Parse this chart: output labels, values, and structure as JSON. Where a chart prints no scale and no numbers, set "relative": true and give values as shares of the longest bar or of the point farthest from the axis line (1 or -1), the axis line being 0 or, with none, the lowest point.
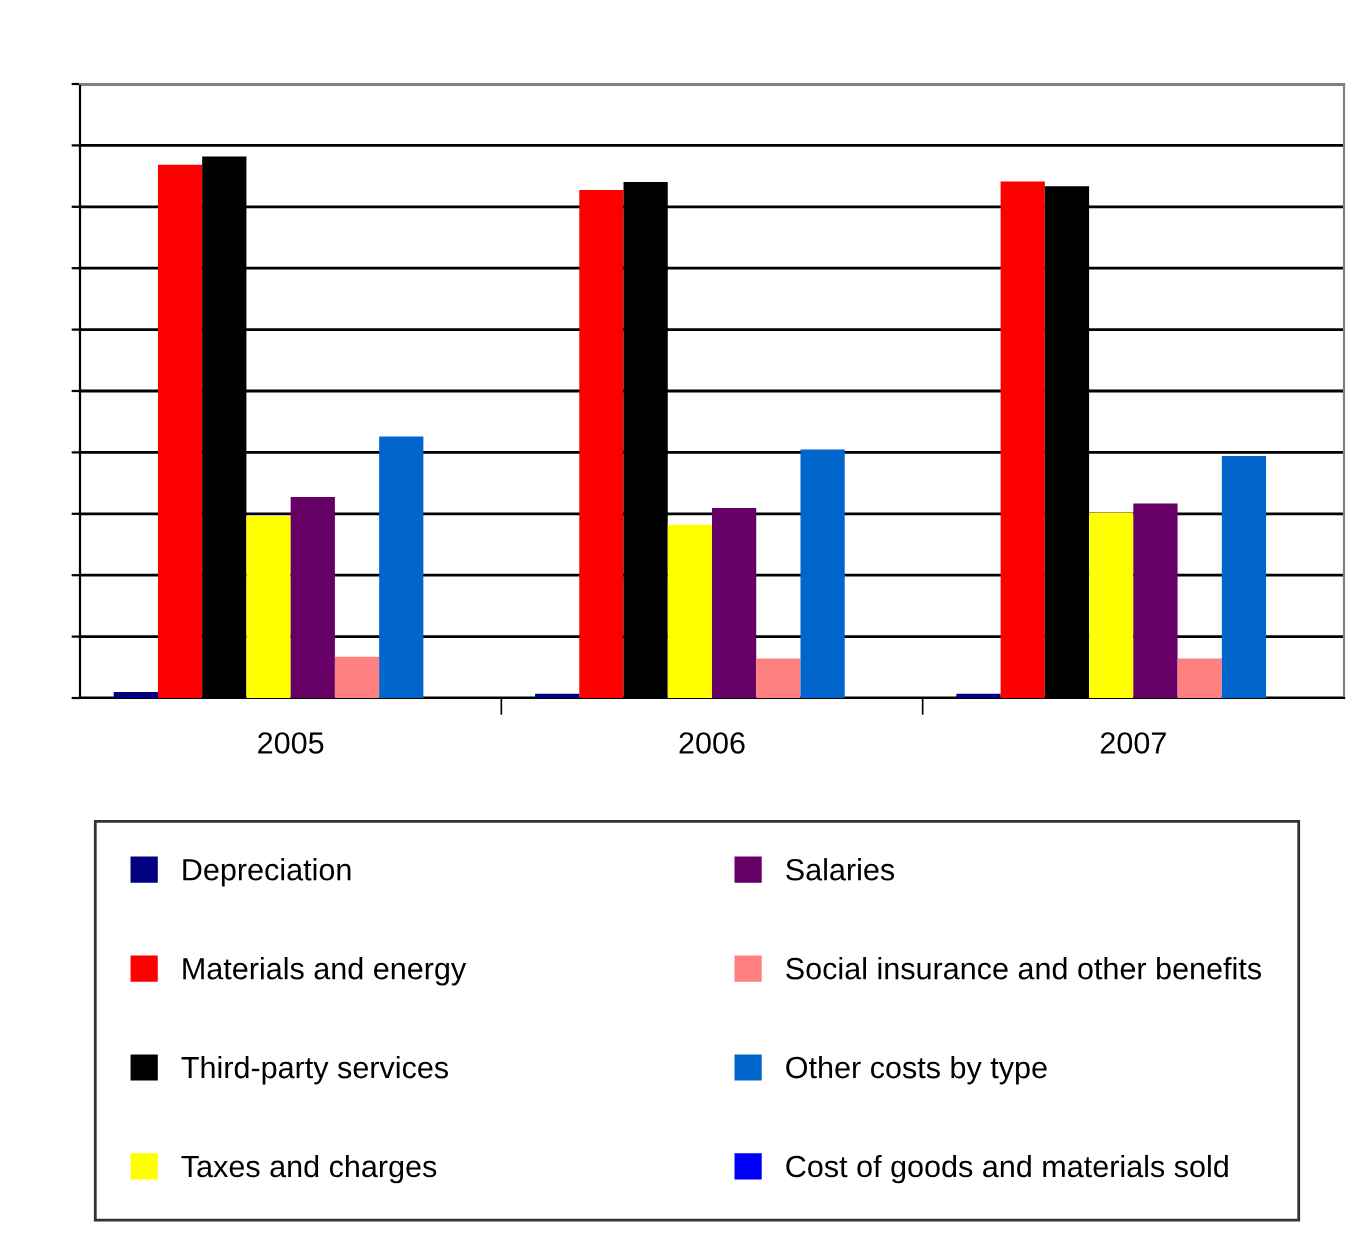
{
  "chart_data": {
    "type": "bar",
    "relative": true,
    "categories": [
      "2005",
      "2006",
      "2007"
    ],
    "grid": "y",
    "legend": "bottom",
    "series": [
      {
        "name": "Depreciation",
        "color": "#000080",
        "values": [
          0.011,
          0.008,
          0.008
        ]
      },
      {
        "name": "Materials and energy",
        "color": "#ff0000",
        "values": [
          0.985,
          0.938,
          0.954
        ]
      },
      {
        "name": "Third-party services",
        "color": "#000000",
        "values": [
          1,
          0.953,
          0.945
        ]
      },
      {
        "name": "Taxes and charges",
        "color": "#ffff00",
        "values": [
          0.336,
          0.32,
          0.342
        ]
      },
      {
        "name": "Salaries",
        "color": "#660066",
        "values": [
          0.371,
          0.351,
          0.359
        ]
      },
      {
        "name": "Social insurance and other benefits",
        "color": "#ff8080",
        "values": [
          0.076,
          0.073,
          0.073
        ]
      },
      {
        "name": "Other costs by type",
        "color": "#0066cc",
        "values": [
          0.483,
          0.459,
          0.447
        ]
      },
      {
        "name": "Cost of goods and materials sold",
        "color": "#0000ff",
        "values": [
          0,
          0,
          0
        ]
      }
    ]
  }
}
